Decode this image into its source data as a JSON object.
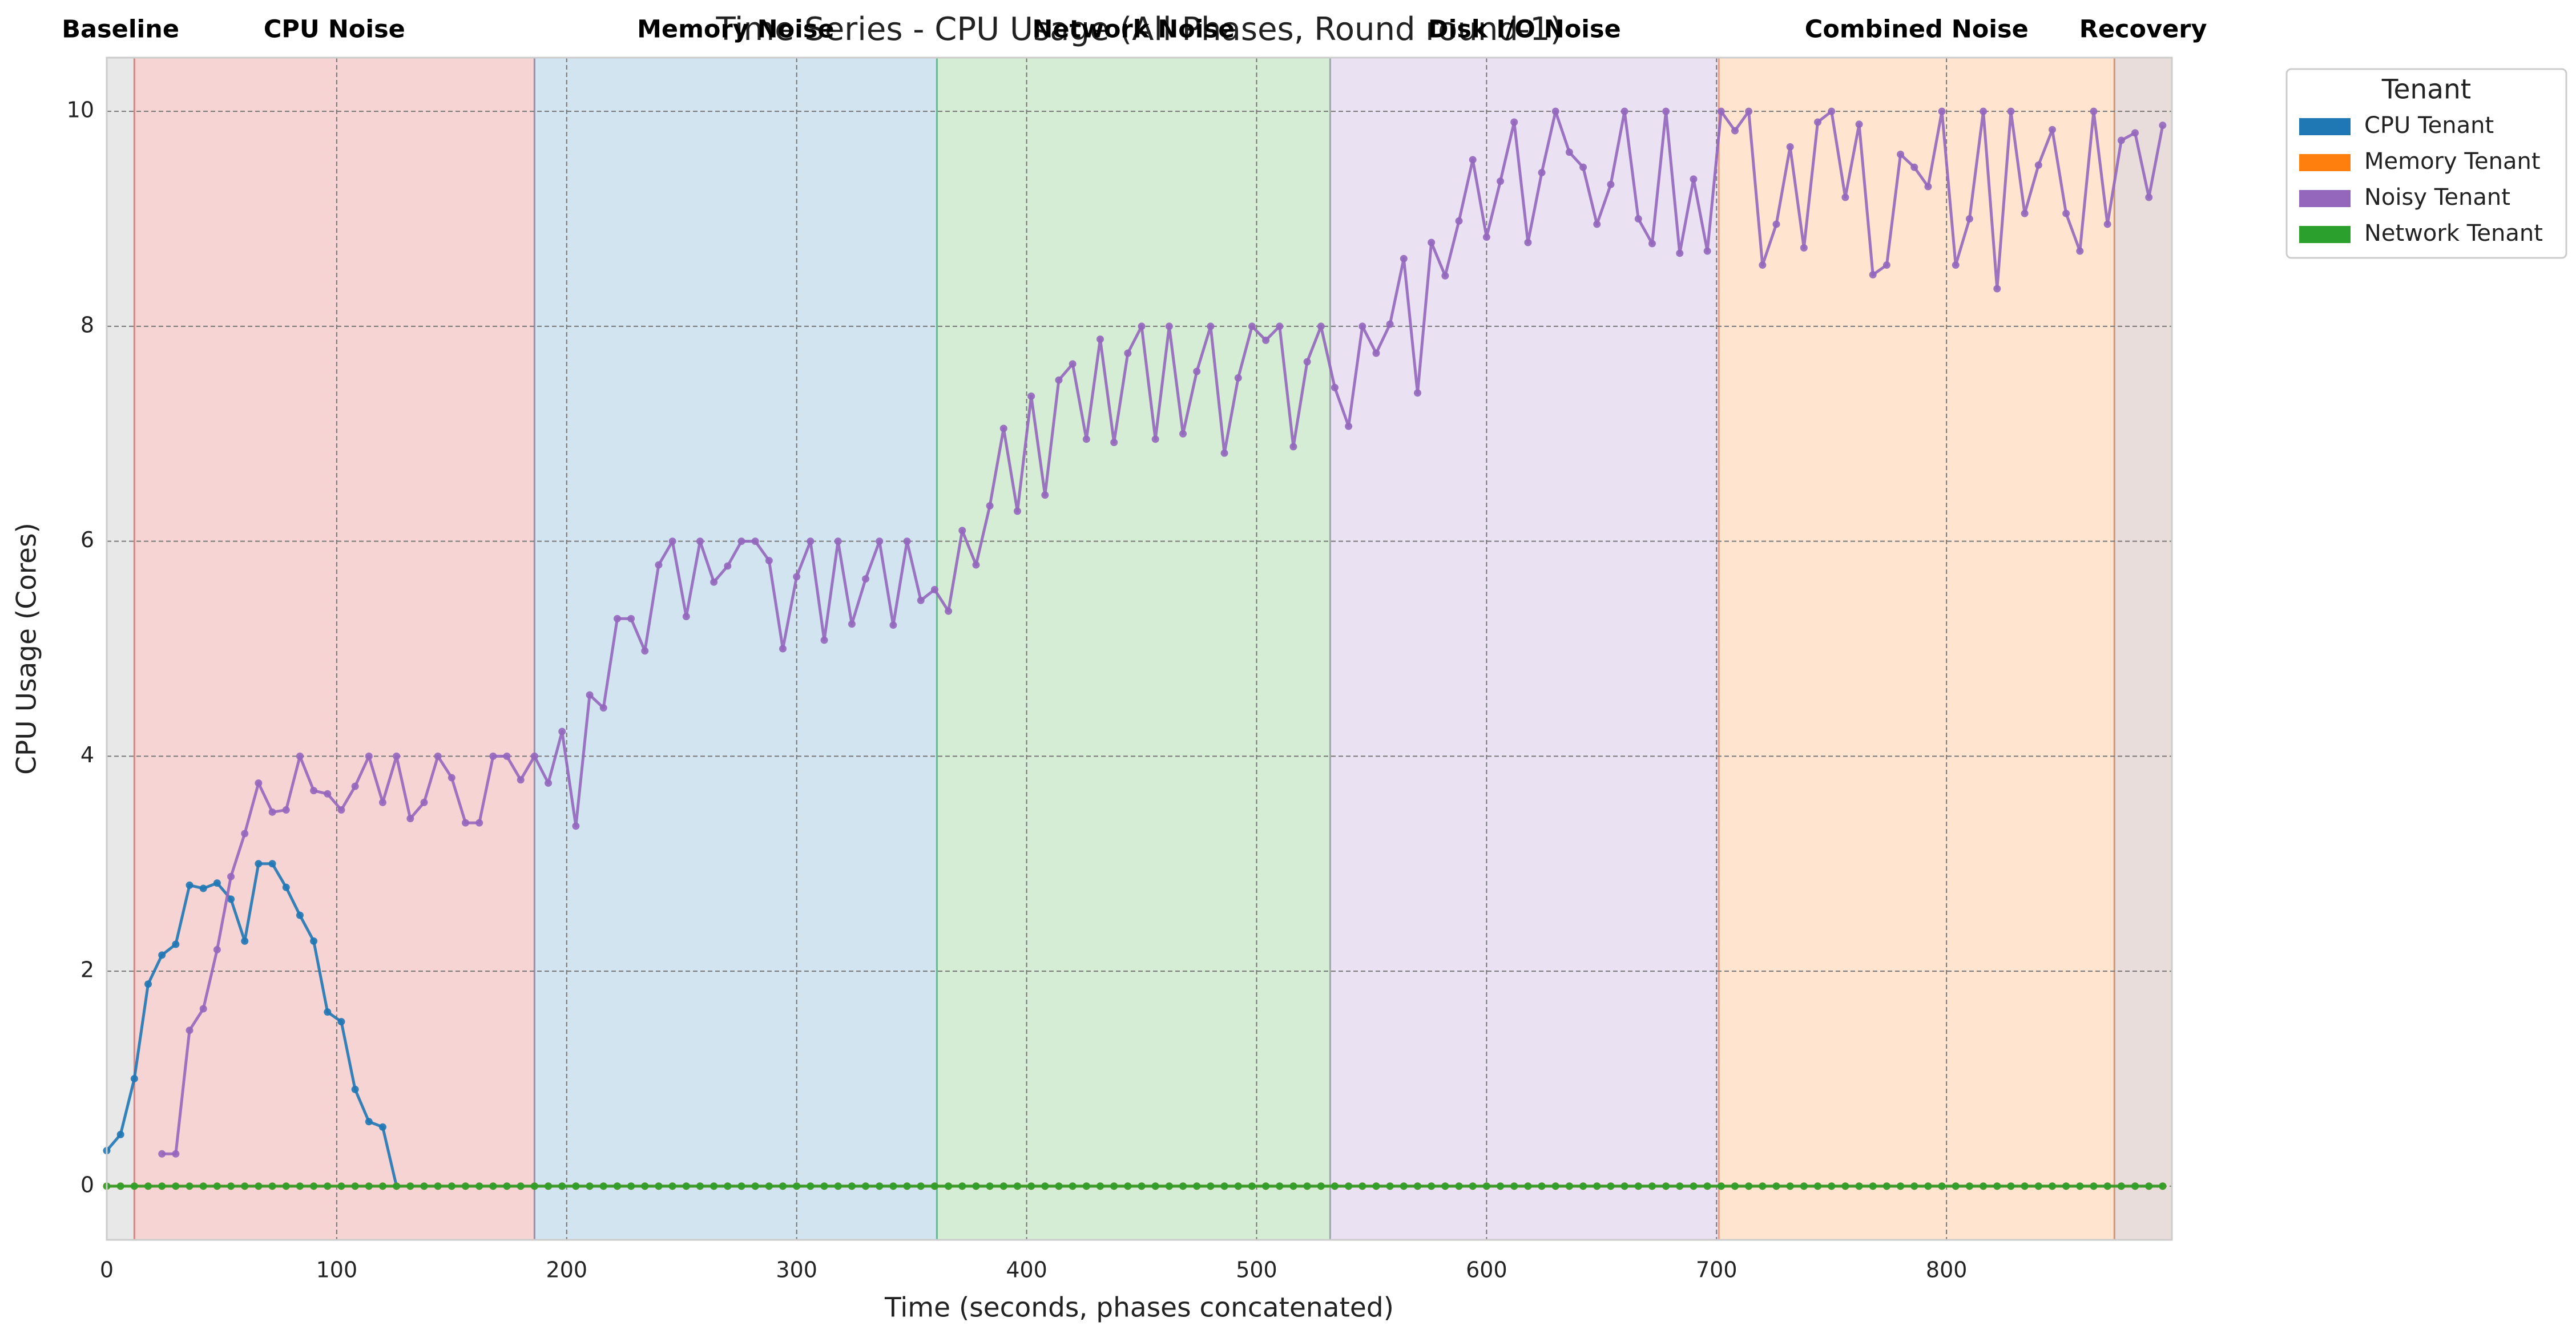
{
  "chart_data": {
    "type": "line",
    "title": "Time Series - CPU Usage (All Phases, Round round-1)",
    "x_label": "Time (seconds, phases concatenated)",
    "y_label": "CPU Usage (Cores)",
    "xlim": [
      0,
      898
    ],
    "ylim": [
      -0.5,
      10.5
    ],
    "xticks": [
      0,
      100,
      200,
      300,
      400,
      500,
      600,
      700,
      800
    ],
    "yticks": [
      0,
      2,
      4,
      6,
      8,
      10
    ],
    "grid": true,
    "legend": {
      "title": "Tenant",
      "position": "outside upper right"
    },
    "phases": [
      {
        "label": "Baseline",
        "start": 0,
        "end": 12,
        "color": "#8c8c8c"
      },
      {
        "label": "CPU Noise",
        "start": 12,
        "end": 186,
        "color": "#d62728"
      },
      {
        "label": "Memory Noise",
        "start": 186,
        "end": 361,
        "color": "#1f77b4"
      },
      {
        "label": "Network Noise",
        "start": 361,
        "end": 532,
        "color": "#2ca02c"
      },
      {
        "label": "Disk I/O Noise",
        "start": 532,
        "end": 701,
        "color": "#9467bd"
      },
      {
        "label": "Combined Noise",
        "start": 701,
        "end": 873,
        "color": "#ff7f0e"
      },
      {
        "label": "Recovery",
        "start": 873,
        "end": 898,
        "color": "#8c564b"
      }
    ],
    "x": [
      0,
      6,
      12,
      18,
      24,
      30,
      36,
      42,
      48,
      54,
      60,
      66,
      72,
      78,
      84,
      90,
      96,
      102,
      108,
      114,
      120,
      126,
      132,
      138,
      144,
      150,
      156,
      162,
      168,
      174,
      180,
      186,
      192,
      198,
      204,
      210,
      216,
      222,
      228,
      234,
      240,
      246,
      252,
      258,
      264,
      270,
      276,
      282,
      288,
      294,
      300,
      306,
      312,
      318,
      324,
      330,
      336,
      342,
      348,
      354,
      360,
      366,
      372,
      378,
      384,
      390,
      396,
      402,
      408,
      414,
      420,
      426,
      432,
      438,
      444,
      450,
      456,
      462,
      468,
      474,
      480,
      486,
      492,
      498,
      504,
      510,
      516,
      522,
      528,
      534,
      540,
      546,
      552,
      558,
      564,
      570,
      576,
      582,
      588,
      594,
      600,
      606,
      612,
      618,
      624,
      630,
      636,
      642,
      648,
      654,
      660,
      666,
      672,
      678,
      684,
      690,
      696,
      702,
      708,
      714,
      720,
      726,
      732,
      738,
      744,
      750,
      756,
      762,
      768,
      774,
      780,
      786,
      792,
      798,
      804,
      810,
      816,
      822,
      828,
      834,
      840,
      846,
      852,
      858,
      864,
      870,
      876,
      882,
      888,
      894
    ],
    "series": [
      {
        "name": "CPU Tenant",
        "color": "#1f77b4",
        "values": [
          0.33,
          0.48,
          1.0,
          1.88,
          2.15,
          2.25,
          2.8,
          2.77,
          2.82,
          2.67,
          2.28,
          3.0,
          3.0,
          2.78,
          2.52,
          2.28,
          1.62,
          1.53,
          0.9,
          0.6,
          0.55,
          0,
          0,
          0,
          0,
          0,
          0,
          0,
          0,
          0,
          0,
          0,
          0,
          0,
          0,
          0,
          0,
          0,
          0,
          0,
          0,
          0,
          0,
          0,
          0,
          0,
          0,
          0,
          0,
          0,
          0,
          0,
          0,
          0,
          0,
          0,
          0,
          0,
          0,
          0,
          0,
          0,
          0,
          0,
          0,
          0,
          0,
          0,
          0,
          0,
          0,
          0,
          0,
          0,
          0,
          0,
          0,
          0,
          0,
          0,
          0,
          0,
          0,
          0,
          0,
          0,
          0,
          0,
          0,
          0,
          0,
          0,
          0,
          0,
          0,
          0,
          0,
          0,
          0,
          0,
          0,
          0,
          0,
          0,
          0,
          0,
          0,
          0,
          0,
          0,
          0,
          0,
          0,
          0,
          0,
          0,
          0,
          0,
          0,
          0,
          0,
          0,
          0,
          0,
          0,
          0,
          0,
          0,
          0,
          0,
          0,
          0,
          0,
          0,
          0,
          0,
          0,
          0,
          0,
          0,
          0,
          0,
          0,
          0,
          0,
          0,
          0,
          0,
          0,
          0
        ]
      },
      {
        "name": "Memory Tenant",
        "color": "#ff7f0e",
        "values": [
          0,
          0,
          0,
          0,
          0,
          0,
          0,
          0,
          0,
          0,
          0,
          0,
          0,
          0,
          0,
          0,
          0,
          0,
          0,
          0,
          0,
          0,
          0,
          0,
          0,
          0,
          0,
          0,
          0,
          0,
          0,
          0,
          0,
          0,
          0,
          0,
          0,
          0,
          0,
          0,
          0,
          0,
          0,
          0,
          0,
          0,
          0,
          0,
          0,
          0,
          0,
          0,
          0,
          0,
          0,
          0,
          0,
          0,
          0,
          0,
          0,
          0,
          0,
          0,
          0,
          0,
          0,
          0,
          0,
          0,
          0,
          0,
          0,
          0,
          0,
          0,
          0,
          0,
          0,
          0,
          0,
          0,
          0,
          0,
          0,
          0,
          0,
          0,
          0,
          0,
          0,
          0,
          0,
          0,
          0,
          0,
          0,
          0,
          0,
          0,
          0,
          0,
          0,
          0,
          0,
          0,
          0,
          0,
          0,
          0,
          0,
          0,
          0,
          0,
          0,
          0,
          0,
          0,
          0,
          0,
          0,
          0,
          0,
          0,
          0,
          0,
          0,
          0,
          0,
          0,
          0,
          0,
          0,
          0,
          0,
          0,
          0,
          0,
          0,
          0,
          0,
          0,
          0,
          0,
          0,
          0,
          0,
          0,
          0,
          0
        ]
      },
      {
        "name": "Noisy Tenant",
        "color": "#9467bd",
        "values": [
          null,
          null,
          null,
          null,
          0.3,
          0.3,
          1.45,
          1.65,
          2.2,
          2.88,
          3.28,
          3.75,
          3.48,
          3.5,
          4.0,
          3.68,
          3.65,
          3.5,
          3.72,
          4.0,
          3.57,
          4.0,
          3.42,
          3.57,
          4.0,
          3.8,
          3.38,
          3.38,
          4.0,
          4.0,
          3.78,
          4.0,
          3.75,
          4.23,
          3.35,
          4.57,
          4.45,
          5.28,
          5.28,
          4.98,
          5.78,
          6.0,
          5.3,
          6.0,
          5.62,
          5.77,
          6.0,
          6.0,
          5.82,
          5.0,
          5.67,
          6.0,
          5.08,
          6.0,
          5.23,
          5.65,
          6.0,
          5.22,
          6.0,
          5.45,
          5.55,
          5.35,
          6.1,
          5.78,
          6.33,
          7.05,
          6.28,
          7.35,
          6.43,
          7.5,
          7.65,
          6.95,
          7.88,
          6.92,
          7.75,
          8.0,
          6.95,
          8.0,
          7.0,
          7.58,
          8.0,
          6.82,
          7.52,
          8.0,
          7.87,
          8.0,
          6.88,
          7.67,
          8.0,
          7.43,
          7.07,
          8.0,
          7.75,
          8.02,
          8.63,
          7.38,
          8.78,
          8.47,
          8.98,
          9.55,
          8.83,
          9.35,
          9.9,
          8.78,
          9.43,
          10,
          9.62,
          9.48,
          8.95,
          9.32,
          10,
          9.0,
          8.77,
          10,
          8.68,
          9.37,
          8.7,
          10,
          9.82,
          10,
          8.57,
          8.95,
          9.67,
          8.73,
          9.9,
          10,
          9.2,
          9.88,
          8.48,
          8.57,
          9.6,
          9.48,
          9.3,
          10,
          8.57,
          9.0,
          10,
          8.35,
          10,
          9.05,
          9.5,
          9.83,
          9.05,
          8.7,
          10,
          8.95,
          9.73,
          9.8,
          9.2,
          9.87
        ]
      },
      {
        "name": "Network Tenant",
        "color": "#2ca02c",
        "values": [
          0,
          0,
          0,
          0,
          0,
          0,
          0,
          0,
          0,
          0,
          0,
          0,
          0,
          0,
          0,
          0,
          0,
          0,
          0,
          0,
          0,
          0,
          0,
          0,
          0,
          0,
          0,
          0,
          0,
          0,
          0,
          0,
          0,
          0,
          0,
          0,
          0,
          0,
          0,
          0,
          0,
          0,
          0,
          0,
          0,
          0,
          0,
          0,
          0,
          0,
          0,
          0,
          0,
          0,
          0,
          0,
          0,
          0,
          0,
          0,
          0,
          0,
          0,
          0,
          0,
          0,
          0,
          0,
          0,
          0,
          0,
          0,
          0,
          0,
          0,
          0,
          0,
          0,
          0,
          0,
          0,
          0,
          0,
          0,
          0,
          0,
          0,
          0,
          0,
          0,
          0,
          0,
          0,
          0,
          0,
          0,
          0,
          0,
          0,
          0,
          0,
          0,
          0,
          0,
          0,
          0,
          0,
          0,
          0,
          0,
          0,
          0,
          0,
          0,
          0,
          0,
          0,
          0,
          0,
          0,
          0,
          0,
          0,
          0,
          0,
          0,
          0,
          0,
          0,
          0,
          0,
          0,
          0,
          0,
          0,
          0,
          0,
          0,
          0,
          0,
          0,
          0,
          0,
          0,
          0,
          0,
          0,
          0,
          0,
          0
        ]
      }
    ]
  }
}
